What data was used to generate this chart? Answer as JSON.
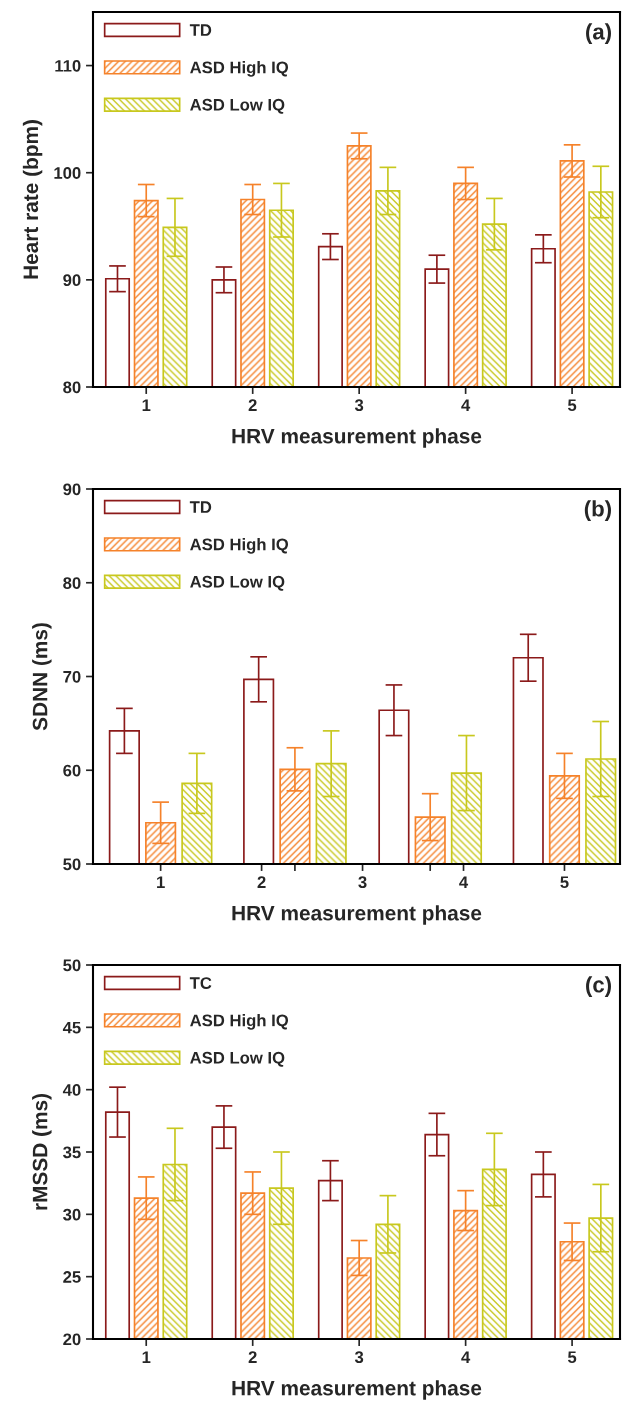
{
  "chart_data": [
    {
      "type": "bar",
      "categories": [
        "1",
        "2",
        "3",
        "4",
        "5"
      ],
      "xlabel": "HRV measurement phase",
      "ylabel": "Heart rate (bpm)",
      "annotations": [
        "(a)"
      ],
      "ylim": [
        80,
        115
      ],
      "yticks": [
        80,
        90,
        100,
        110
      ],
      "legend": "top left",
      "grid": false,
      "series": [
        {
          "name": "TD",
          "color": "#8b1a1a",
          "values": [
            90.1,
            90.0,
            93.1,
            91.0,
            92.9
          ],
          "errors": [
            1.2,
            1.2,
            1.2,
            1.3,
            1.3
          ]
        },
        {
          "name": "ASD High IQ",
          "color": "#f5822a",
          "values": [
            97.4,
            97.5,
            102.5,
            99.0,
            101.1
          ],
          "errors": [
            1.5,
            1.4,
            1.2,
            1.5,
            1.5
          ]
        },
        {
          "name": "ASD Low IQ",
          "color": "#c8c81e",
          "values": [
            94.9,
            96.5,
            98.3,
            95.2,
            98.2
          ],
          "errors": [
            2.7,
            2.5,
            2.2,
            2.4,
            2.4
          ]
        }
      ]
    },
    {
      "type": "bar",
      "x": [
        1,
        2.33,
        3.67,
        5
      ],
      "xlabel": "HRV measurement phase",
      "ylabel": "SDNN (ms)",
      "annotations": [
        "(b)"
      ],
      "xlim": [
        0.33,
        5.55
      ],
      "xticks": [
        1,
        2,
        {
          "value": 2.33,
          "label": null
        },
        3,
        {
          "value": 3.67,
          "label": null
        },
        4,
        5
      ],
      "ylim": [
        50,
        90
      ],
      "yticks": [
        50,
        60,
        70,
        80,
        90
      ],
      "legend": "top left",
      "grid": false,
      "series": [
        {
          "name": "TD",
          "color": "#8b1a1a",
          "values": [
            64.2,
            69.7,
            66.4,
            72.0
          ],
          "errors": [
            2.4,
            2.4,
            2.7,
            2.5
          ]
        },
        {
          "name": "ASD High IQ",
          "color": "#f5822a",
          "values": [
            54.4,
            60.1,
            55.0,
            59.4
          ],
          "errors": [
            2.2,
            2.3,
            2.5,
            2.4
          ]
        },
        {
          "name": "ASD Low IQ",
          "color": "#c8c81e",
          "values": [
            58.6,
            60.7,
            59.7,
            61.2
          ],
          "errors": [
            3.2,
            3.5,
            4.0,
            4.0
          ]
        }
      ]
    },
    {
      "type": "bar",
      "categories": [
        "1",
        "2",
        "3",
        "4",
        "5"
      ],
      "xlabel": "HRV measurement phase",
      "ylabel": "rMSSD (ms)",
      "annotations": [
        "(c)"
      ],
      "ylim": [
        20,
        50
      ],
      "yticks": [
        20,
        25,
        30,
        35,
        40,
        45,
        50
      ],
      "legend": "top left",
      "grid": false,
      "series": [
        {
          "name": "TC",
          "color": "#8b1a1a",
          "values": [
            38.2,
            37.0,
            32.7,
            36.4,
            33.2
          ],
          "errors": [
            2.0,
            1.7,
            1.6,
            1.7,
            1.8
          ]
        },
        {
          "name": "ASD High IQ",
          "color": "#f5822a",
          "values": [
            31.3,
            31.7,
            26.5,
            30.3,
            27.8
          ],
          "errors": [
            1.7,
            1.7,
            1.4,
            1.6,
            1.5
          ]
        },
        {
          "name": "ASD Low IQ",
          "color": "#c8c81e",
          "values": [
            34.0,
            32.1,
            29.2,
            33.6,
            29.7
          ],
          "errors": [
            2.9,
            2.9,
            2.3,
            2.9,
            2.7
          ]
        }
      ]
    }
  ]
}
